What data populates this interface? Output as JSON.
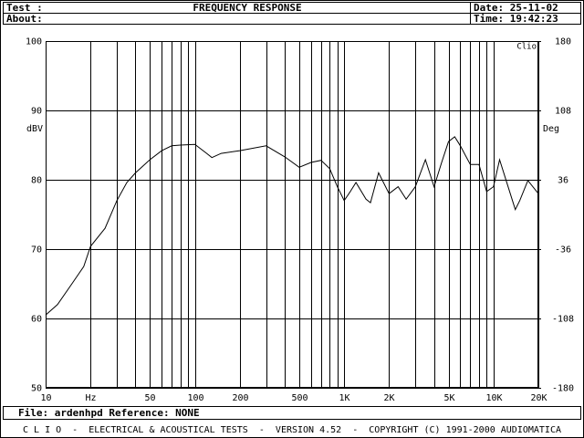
{
  "header": {
    "test_label": "Test :",
    "about_label": "About:",
    "title": "FREQUENCY RESPONSE",
    "date": "Date: 25-11-02",
    "time": "Time: 19:42:23"
  },
  "chart_data": {
    "type": "line",
    "ylabel": "dBV",
    "y2label": "Deg",
    "watermark": "Clio",
    "log_x": true,
    "grid": true,
    "color": "#000000",
    "xlim": [
      10,
      20000
    ],
    "ylim": [
      50,
      100
    ],
    "y2lim": [
      -180,
      180
    ],
    "xticks": [
      10,
      {
        "value": 20,
        "label": "Hz"
      },
      50,
      100,
      200,
      500,
      {
        "value": 1000,
        "label": "1K"
      },
      {
        "value": 2000,
        "label": "2K"
      },
      {
        "value": 5000,
        "label": "5K"
      },
      {
        "value": 10000,
        "label": "10K"
      },
      {
        "value": 20000,
        "label": "20K"
      }
    ],
    "x_grid_lines": [
      30,
      40,
      60,
      70,
      80,
      90,
      300,
      400,
      600,
      700,
      800,
      900,
      3000,
      4000,
      6000,
      7000,
      8000,
      9000
    ],
    "yticks": [
      50,
      60,
      70,
      80,
      90,
      100
    ],
    "y2ticks": [
      -180,
      -108,
      -36,
      36,
      108,
      180
    ],
    "x": [
      10,
      12,
      15,
      18,
      20,
      25,
      30,
      35,
      40,
      50,
      60,
      70,
      80,
      100,
      120,
      130,
      150,
      200,
      300,
      400,
      500,
      600,
      700,
      800,
      900,
      1000,
      1100,
      1200,
      1400,
      1500,
      1700,
      2000,
      2300,
      2600,
      3000,
      3500,
      4000,
      4500,
      5000,
      5500,
      6000,
      7000,
      8000,
      9000,
      10000,
      11000,
      12000,
      14000,
      15000,
      17000,
      20000
    ],
    "values": [
      60.5,
      62,
      65,
      67.5,
      70.4,
      73,
      77,
      79.6,
      81,
      82.9,
      84.2,
      84.9,
      85,
      85.1,
      83.8,
      83.2,
      83.8,
      84.2,
      84.9,
      83.3,
      81.8,
      82.5,
      82.8,
      81.6,
      79,
      77,
      78.3,
      79.6,
      77.2,
      76.7,
      81,
      78,
      79,
      77.2,
      79,
      82.9,
      79,
      82.5,
      85.5,
      86.2,
      84.9,
      82.2,
      82.2,
      78.3,
      79,
      82.9,
      80.3,
      75.7,
      77,
      79.9,
      78
    ]
  },
  "footer": {
    "file": "File: ardenhpd Reference: NONE",
    "credits": "C L I O  -  ELECTRICAL & ACOUSTICAL TESTS  -  VERSION 4.52  -  COPYRIGHT (C) 1991-2000 AUDIOMATICA"
  }
}
